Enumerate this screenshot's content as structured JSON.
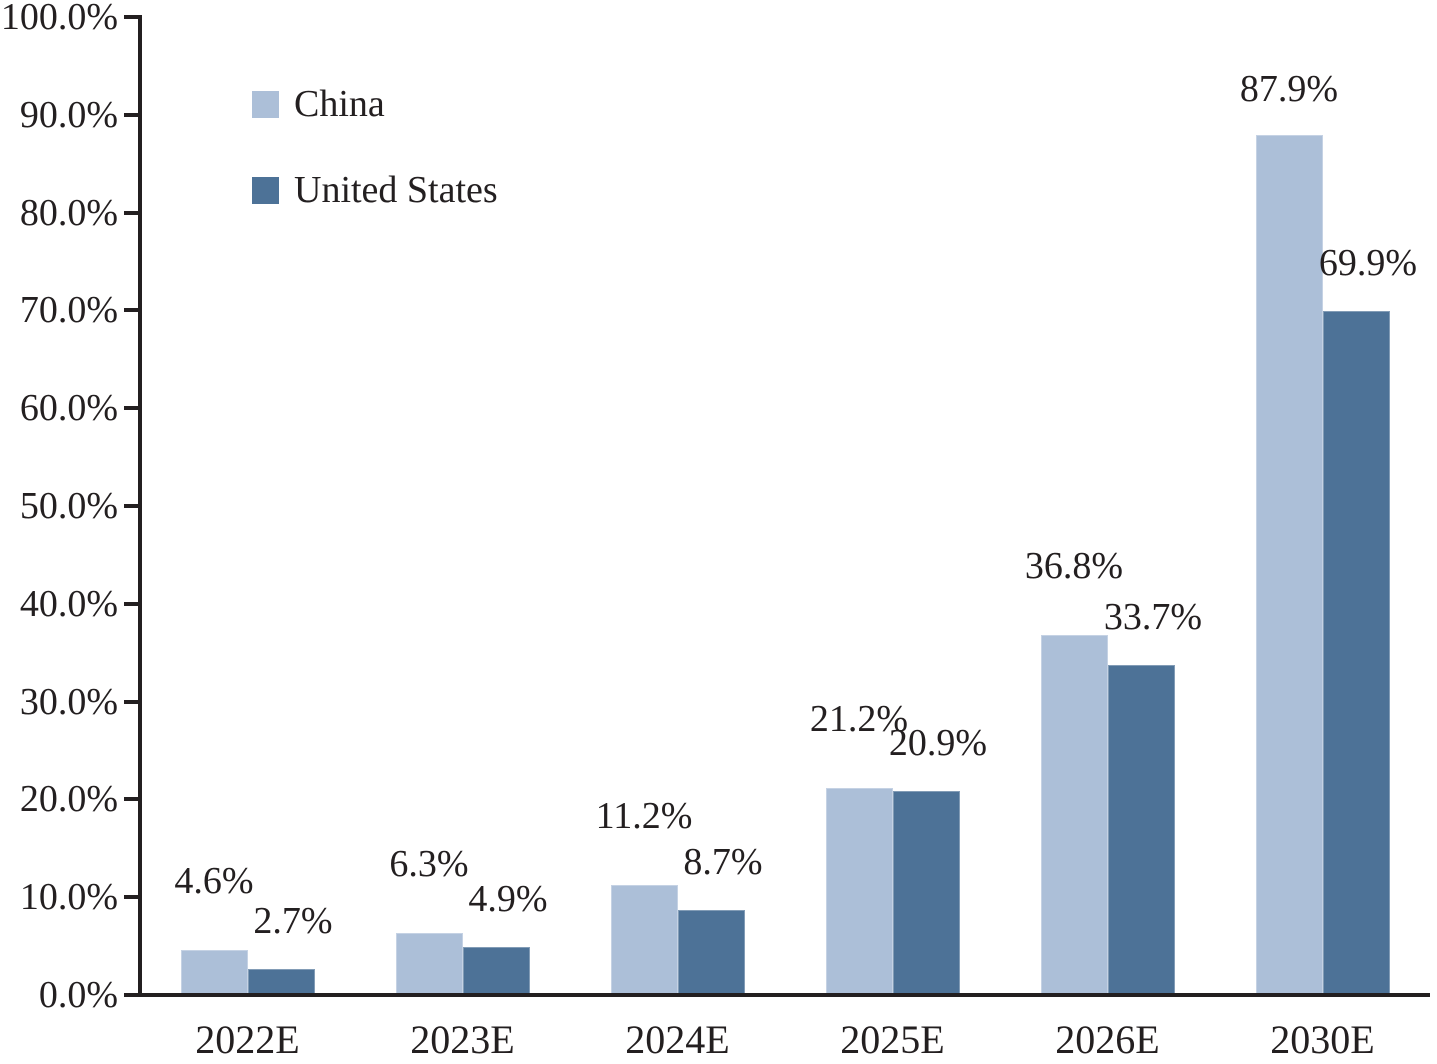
{
  "chart_data": {
    "type": "bar",
    "title": "",
    "xlabel": "",
    "ylabel": "",
    "categories": [
      "2022E",
      "2023E",
      "2024E",
      "2025E",
      "2026E",
      "2030E"
    ],
    "series": [
      {
        "name": "China",
        "color": "#acbfd8",
        "values": [
          4.6,
          6.3,
          11.2,
          21.2,
          36.8,
          87.9
        ]
      },
      {
        "name": "United States",
        "color": "#4d7297",
        "values": [
          2.7,
          4.9,
          8.7,
          20.9,
          33.7,
          69.9
        ]
      }
    ],
    "y_axis": {
      "min": 0,
      "max": 100,
      "step": 10,
      "tick_labels": [
        "0.0%",
        "10.0%",
        "20.0%",
        "30.0%",
        "40.0%",
        "50.0%",
        "60.0%",
        "70.0%",
        "80.0%",
        "90.0%",
        "100.0%"
      ]
    },
    "value_label_format": {
      "decimals": 1,
      "suffix": "%"
    },
    "legend_position": "top-left",
    "grid": false,
    "axis_color": "#231f20",
    "text_color": "#231f20",
    "background_color": "#ffffff"
  }
}
